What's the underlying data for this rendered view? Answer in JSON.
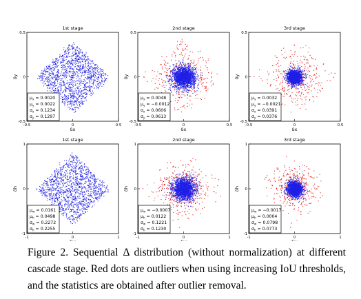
{
  "caption": "Figure 2. Sequential Δ distribution (without normalization) at different cascade stage. Red dots are outliers when using increasing IoU thresholds, and the statistics are obtained after outlier removal.",
  "colors": {
    "inlier": "#1f1fe6",
    "outlier": "#e31a1c",
    "axes": "#000000"
  },
  "chart_data": [
    {
      "type": "scatter",
      "title": "1st stage",
      "xlabel": "δx",
      "ylabel": "δy",
      "xlim": [
        -0.5,
        0.5
      ],
      "ylim": [
        -0.5,
        0.5
      ],
      "xticks": [
        "-0.5",
        "0",
        "0.5"
      ],
      "yticks": [
        "-0.5",
        "0",
        "0.5"
      ],
      "inlier_spread": 0.13,
      "outlier_spread": 0,
      "stats": [
        {
          "symbol": "μ",
          "sub": "x",
          "value": "= 0.0020"
        },
        {
          "symbol": "μ",
          "sub": "y",
          "value": "= 0.0022"
        },
        {
          "symbol": "σ",
          "sub": "x",
          "value": "= 0.1234"
        },
        {
          "symbol": "σ",
          "sub": "y",
          "value": "= 0.1297"
        }
      ]
    },
    {
      "type": "scatter",
      "title": "2nd stage",
      "xlabel": "δx",
      "ylabel": "δy",
      "xlim": [
        -0.5,
        0.5
      ],
      "ylim": [
        -0.5,
        0.5
      ],
      "xticks": [
        "-0.5",
        "0",
        "0.5"
      ],
      "yticks": [
        "-0.5",
        "0",
        "0.5"
      ],
      "inlier_spread": 0.061,
      "outlier_spread": 0.2,
      "stats": [
        {
          "symbol": "μ",
          "sub": "x",
          "value": "= 0.0048"
        },
        {
          "symbol": "μ",
          "sub": "y",
          "value": "= −0.0012"
        },
        {
          "symbol": "σ",
          "sub": "x",
          "value": "= 0.0606"
        },
        {
          "symbol": "σ",
          "sub": "y",
          "value": "= 0.0613"
        }
      ]
    },
    {
      "type": "scatter",
      "title": "3rd stage",
      "xlabel": "δx",
      "ylabel": "δy",
      "xlim": [
        -0.5,
        0.5
      ],
      "ylim": [
        -0.5,
        0.5
      ],
      "xticks": [
        "-0.5",
        "0",
        "0.5"
      ],
      "yticks": [
        "-0.5",
        "0",
        "0.5"
      ],
      "inlier_spread": 0.038,
      "outlier_spread": 0.16,
      "stats": [
        {
          "symbol": "μ",
          "sub": "x",
          "value": "= 0.0032"
        },
        {
          "symbol": "μ",
          "sub": "y",
          "value": "= −0.0021"
        },
        {
          "symbol": "σ",
          "sub": "x",
          "value": "= 0.0391"
        },
        {
          "symbol": "σ",
          "sub": "y",
          "value": "= 0.0376"
        }
      ]
    },
    {
      "type": "scatter",
      "title": "1st stage",
      "xlabel": "δw",
      "ylabel": "δh",
      "xlim": [
        -1,
        1
      ],
      "ylim": [
        -1,
        1
      ],
      "xticks": [
        "-1",
        "0",
        "1"
      ],
      "yticks": [
        "-1",
        "0",
        "1"
      ],
      "inlier_spread": 0.23,
      "outlier_spread": 0,
      "stats": [
        {
          "symbol": "μ",
          "sub": "w",
          "value": "= 0.0161"
        },
        {
          "symbol": "μ",
          "sub": "h",
          "value": "= 0.0498"
        },
        {
          "symbol": "σ",
          "sub": "w",
          "value": "= 0.2272"
        },
        {
          "symbol": "σ",
          "sub": "h",
          "value": "= 0.2255"
        }
      ]
    },
    {
      "type": "scatter",
      "title": "2nd stage",
      "xlabel": "δw",
      "ylabel": "δh",
      "xlim": [
        -1,
        1
      ],
      "ylim": [
        -1,
        1
      ],
      "xticks": [
        "-1",
        "0",
        "1"
      ],
      "yticks": [
        "-1",
        "0",
        "1"
      ],
      "inlier_spread": 0.122,
      "outlier_spread": 0.3,
      "stats": [
        {
          "symbol": "μ",
          "sub": "w",
          "value": "= −0.0007"
        },
        {
          "symbol": "μ",
          "sub": "h",
          "value": "= 0.0122"
        },
        {
          "symbol": "σ",
          "sub": "w",
          "value": "= 0.1221"
        },
        {
          "symbol": "σ",
          "sub": "h",
          "value": "= 0.1230"
        }
      ]
    },
    {
      "type": "scatter",
      "title": "3rd stage",
      "xlabel": "δw",
      "ylabel": "δh",
      "xlim": [
        -1,
        1
      ],
      "ylim": [
        -1,
        1
      ],
      "xticks": [
        "-1",
        "0",
        "1"
      ],
      "yticks": [
        "-1",
        "0",
        "1"
      ],
      "inlier_spread": 0.08,
      "outlier_spread": 0.25,
      "stats": [
        {
          "symbol": "μ",
          "sub": "w",
          "value": "= −0.0017"
        },
        {
          "symbol": "μ",
          "sub": "h",
          "value": "= 0.0004"
        },
        {
          "symbol": "σ",
          "sub": "w",
          "value": "= 0.0798"
        },
        {
          "symbol": "σ",
          "sub": "h",
          "value": "= 0.0773"
        }
      ]
    }
  ]
}
